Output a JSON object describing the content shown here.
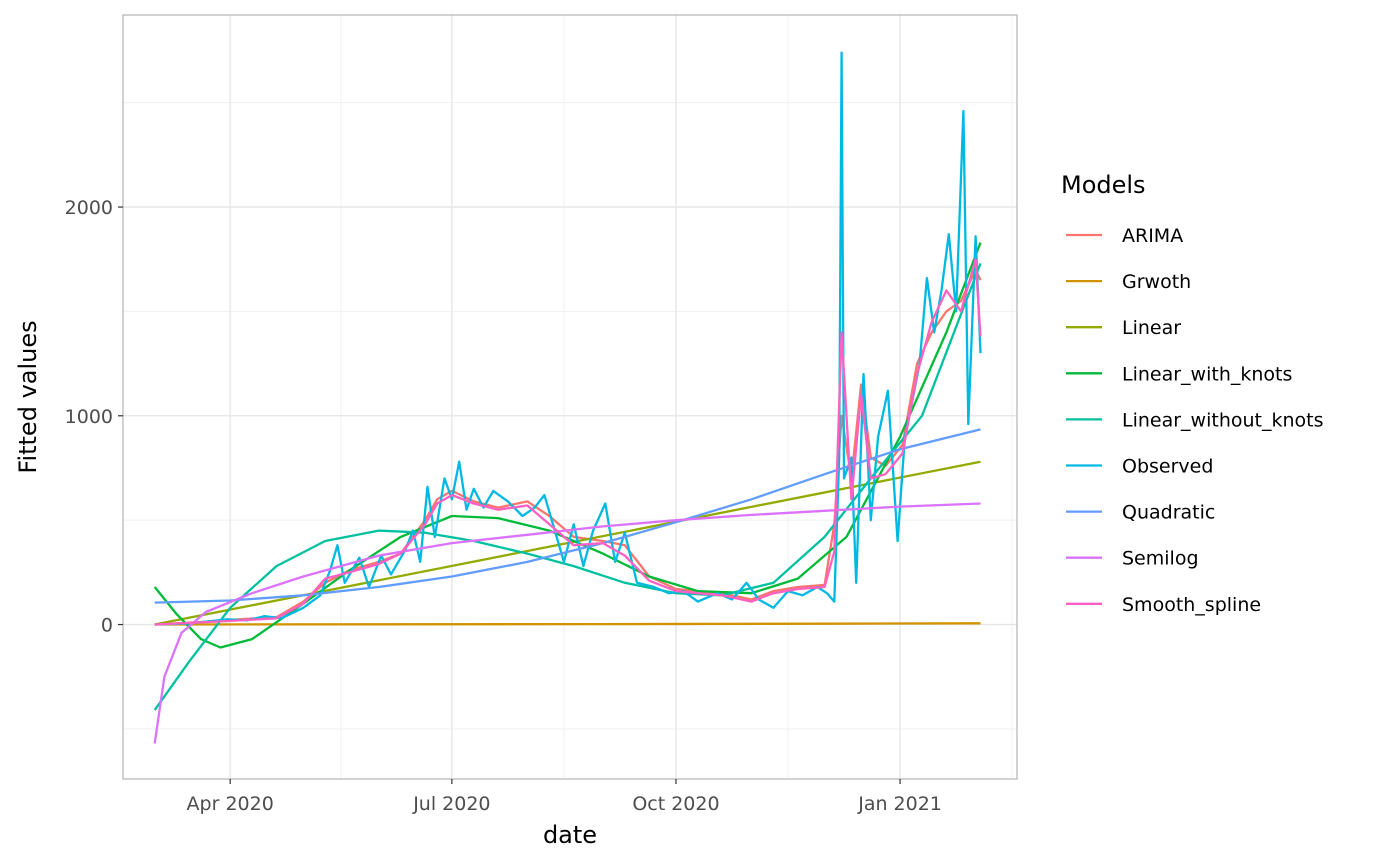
{
  "chart_data": {
    "type": "line",
    "xlabel": "date",
    "ylabel": "Fitted values",
    "xlim": [
      "2020-02-17",
      "2021-02-18"
    ],
    "ylim": [
      -740,
      2920
    ],
    "x_ticks": [
      {
        "date": "2020-04-01",
        "label": "Apr 2020"
      },
      {
        "date": "2020-07-01",
        "label": "Jul 2020"
      },
      {
        "date": "2020-10-01",
        "label": "Oct 2020"
      },
      {
        "date": "2021-01-01",
        "label": "Jan 2021"
      }
    ],
    "y_ticks": [
      0,
      1000,
      2000
    ],
    "grid": true,
    "legend": {
      "title": "Models",
      "position": "right"
    },
    "series": [
      {
        "name": "ARIMA",
        "color": "#F8766D",
        "points": [
          [
            "2020-03-01",
            0
          ],
          [
            "2020-03-20",
            12
          ],
          [
            "2020-04-05",
            25
          ],
          [
            "2020-04-20",
            35
          ],
          [
            "2020-05-01",
            110
          ],
          [
            "2020-05-10",
            200
          ],
          [
            "2020-05-20",
            260
          ],
          [
            "2020-06-01",
            300
          ],
          [
            "2020-06-10",
            340
          ],
          [
            "2020-06-20",
            500
          ],
          [
            "2020-06-25",
            600
          ],
          [
            "2020-07-01",
            640
          ],
          [
            "2020-07-10",
            590
          ],
          [
            "2020-07-20",
            560
          ],
          [
            "2020-08-01",
            590
          ],
          [
            "2020-08-10",
            520
          ],
          [
            "2020-08-20",
            420
          ],
          [
            "2020-09-01",
            400
          ],
          [
            "2020-09-10",
            380
          ],
          [
            "2020-09-20",
            230
          ],
          [
            "2020-10-01",
            170
          ],
          [
            "2020-10-10",
            160
          ],
          [
            "2020-10-20",
            150
          ],
          [
            "2020-11-01",
            120
          ],
          [
            "2020-11-10",
            160
          ],
          [
            "2020-11-20",
            180
          ],
          [
            "2020-12-01",
            190
          ],
          [
            "2020-12-05",
            480
          ],
          [
            "2020-12-08",
            1000
          ],
          [
            "2020-12-12",
            700
          ],
          [
            "2020-12-16",
            1150
          ],
          [
            "2020-12-20",
            800
          ],
          [
            "2020-12-26",
            760
          ],
          [
            "2021-01-02",
            860
          ],
          [
            "2021-01-08",
            1250
          ],
          [
            "2021-01-14",
            1400
          ],
          [
            "2021-01-20",
            1500
          ],
          [
            "2021-01-26",
            1550
          ],
          [
            "2021-02-01",
            1700
          ],
          [
            "2021-02-03",
            1650
          ]
        ]
      },
      {
        "name": "Grwoth",
        "color": "#D39200",
        "points": [
          [
            "2020-03-01",
            0
          ],
          [
            "2020-06-01",
            1
          ],
          [
            "2020-09-01",
            2
          ],
          [
            "2020-12-01",
            4
          ],
          [
            "2021-02-03",
            6
          ]
        ]
      },
      {
        "name": "Linear",
        "color": "#93AA00",
        "points": [
          [
            "2020-03-01",
            0
          ],
          [
            "2021-02-03",
            780
          ]
        ]
      },
      {
        "name": "Linear_with_knots",
        "color": "#00BA38",
        "points": [
          [
            "2020-03-01",
            180
          ],
          [
            "2020-03-10",
            50
          ],
          [
            "2020-03-20",
            -70
          ],
          [
            "2020-03-28",
            -110
          ],
          [
            "2020-04-10",
            -70
          ],
          [
            "2020-05-01",
            100
          ],
          [
            "2020-05-20",
            260
          ],
          [
            "2020-06-10",
            420
          ],
          [
            "2020-07-01",
            520
          ],
          [
            "2020-07-20",
            510
          ],
          [
            "2020-08-10",
            450
          ],
          [
            "2020-09-01",
            340
          ],
          [
            "2020-09-20",
            230
          ],
          [
            "2020-10-10",
            160
          ],
          [
            "2020-11-01",
            150
          ],
          [
            "2020-11-20",
            220
          ],
          [
            "2020-12-10",
            420
          ],
          [
            "2021-01-01",
            900
          ],
          [
            "2021-01-20",
            1400
          ],
          [
            "2021-02-03",
            1830
          ]
        ]
      },
      {
        "name": "Linear_without_knots",
        "color": "#00C19F",
        "points": [
          [
            "2020-03-01",
            -410
          ],
          [
            "2020-03-15",
            -180
          ],
          [
            "2020-04-01",
            80
          ],
          [
            "2020-04-20",
            280
          ],
          [
            "2020-05-10",
            400
          ],
          [
            "2020-06-01",
            450
          ],
          [
            "2020-06-20",
            440
          ],
          [
            "2020-07-10",
            400
          ],
          [
            "2020-08-01",
            340
          ],
          [
            "2020-08-20",
            280
          ],
          [
            "2020-09-10",
            200
          ],
          [
            "2020-10-01",
            150
          ],
          [
            "2020-10-20",
            140
          ],
          [
            "2020-11-10",
            200
          ],
          [
            "2020-12-01",
            420
          ],
          [
            "2020-12-20",
            700
          ],
          [
            "2021-01-10",
            1000
          ],
          [
            "2021-02-03",
            1730
          ]
        ]
      },
      {
        "name": "Observed",
        "color": "#00B9E3",
        "points": [
          [
            "2020-03-01",
            0
          ],
          [
            "2020-03-15",
            5
          ],
          [
            "2020-03-31",
            25
          ],
          [
            "2020-04-08",
            20
          ],
          [
            "2020-04-15",
            40
          ],
          [
            "2020-04-22",
            30
          ],
          [
            "2020-05-01",
            80
          ],
          [
            "2020-05-08",
            140
          ],
          [
            "2020-05-12",
            260
          ],
          [
            "2020-05-15",
            380
          ],
          [
            "2020-05-18",
            200
          ],
          [
            "2020-05-24",
            320
          ],
          [
            "2020-05-28",
            180
          ],
          [
            "2020-06-02",
            330
          ],
          [
            "2020-06-06",
            240
          ],
          [
            "2020-06-12",
            360
          ],
          [
            "2020-06-15",
            450
          ],
          [
            "2020-06-18",
            300
          ],
          [
            "2020-06-21",
            660
          ],
          [
            "2020-06-24",
            420
          ],
          [
            "2020-06-28",
            700
          ],
          [
            "2020-07-01",
            600
          ],
          [
            "2020-07-04",
            780
          ],
          [
            "2020-07-07",
            550
          ],
          [
            "2020-07-10",
            650
          ],
          [
            "2020-07-14",
            560
          ],
          [
            "2020-07-18",
            640
          ],
          [
            "2020-07-24",
            590
          ],
          [
            "2020-07-30",
            520
          ],
          [
            "2020-08-04",
            560
          ],
          [
            "2020-08-08",
            620
          ],
          [
            "2020-08-12",
            460
          ],
          [
            "2020-08-16",
            300
          ],
          [
            "2020-08-20",
            480
          ],
          [
            "2020-08-24",
            280
          ],
          [
            "2020-08-28",
            450
          ],
          [
            "2020-09-02",
            580
          ],
          [
            "2020-09-06",
            300
          ],
          [
            "2020-09-10",
            440
          ],
          [
            "2020-09-15",
            200
          ],
          [
            "2020-09-22",
            180
          ],
          [
            "2020-09-28",
            150
          ],
          [
            "2020-10-04",
            160
          ],
          [
            "2020-10-10",
            110
          ],
          [
            "2020-10-18",
            150
          ],
          [
            "2020-10-24",
            120
          ],
          [
            "2020-10-30",
            200
          ],
          [
            "2020-11-04",
            120
          ],
          [
            "2020-11-10",
            80
          ],
          [
            "2020-11-16",
            160
          ],
          [
            "2020-11-22",
            140
          ],
          [
            "2020-11-28",
            180
          ],
          [
            "2020-12-02",
            150
          ],
          [
            "2020-12-05",
            110
          ],
          [
            "2020-12-07",
            800
          ],
          [
            "2020-12-08",
            2740
          ],
          [
            "2020-12-09",
            700
          ],
          [
            "2020-12-12",
            800
          ],
          [
            "2020-12-14",
            200
          ],
          [
            "2020-12-17",
            1200
          ],
          [
            "2020-12-20",
            500
          ],
          [
            "2020-12-23",
            900
          ],
          [
            "2020-12-27",
            1120
          ],
          [
            "2020-12-31",
            400
          ],
          [
            "2021-01-03",
            900
          ],
          [
            "2021-01-06",
            1070
          ],
          [
            "2021-01-09",
            1250
          ],
          [
            "2021-01-12",
            1660
          ],
          [
            "2021-01-15",
            1400
          ],
          [
            "2021-01-18",
            1600
          ],
          [
            "2021-01-21",
            1870
          ],
          [
            "2021-01-24",
            1500
          ],
          [
            "2021-01-27",
            2460
          ],
          [
            "2021-01-29",
            960
          ],
          [
            "2021-02-01",
            1860
          ],
          [
            "2021-02-03",
            1300
          ]
        ]
      },
      {
        "name": "Quadratic",
        "color": "#619CFF",
        "points": [
          [
            "2020-03-01",
            105
          ],
          [
            "2020-04-01",
            115
          ],
          [
            "2020-05-01",
            140
          ],
          [
            "2020-06-01",
            180
          ],
          [
            "2020-07-01",
            230
          ],
          [
            "2020-08-01",
            300
          ],
          [
            "2020-09-01",
            390
          ],
          [
            "2020-10-01",
            490
          ],
          [
            "2020-11-01",
            600
          ],
          [
            "2020-12-01",
            720
          ],
          [
            "2021-01-01",
            840
          ],
          [
            "2021-02-03",
            935
          ]
        ]
      },
      {
        "name": "Semilog",
        "color": "#DB72FB",
        "points": [
          [
            "2020-03-01",
            -570
          ],
          [
            "2020-03-05",
            -250
          ],
          [
            "2020-03-12",
            -40
          ],
          [
            "2020-03-22",
            60
          ],
          [
            "2020-04-10",
            150
          ],
          [
            "2020-05-01",
            230
          ],
          [
            "2020-06-01",
            330
          ],
          [
            "2020-07-01",
            390
          ],
          [
            "2020-08-01",
            430
          ],
          [
            "2020-09-01",
            470
          ],
          [
            "2020-10-01",
            500
          ],
          [
            "2020-11-01",
            525
          ],
          [
            "2020-12-01",
            545
          ],
          [
            "2021-01-01",
            565
          ],
          [
            "2021-02-03",
            580
          ]
        ]
      },
      {
        "name": "Smooth_spline",
        "color": "#FF61C3",
        "points": [
          [
            "2020-03-01",
            0
          ],
          [
            "2020-03-20",
            10
          ],
          [
            "2020-04-05",
            20
          ],
          [
            "2020-04-20",
            30
          ],
          [
            "2020-05-01",
            100
          ],
          [
            "2020-05-10",
            220
          ],
          [
            "2020-05-20",
            250
          ],
          [
            "2020-06-01",
            290
          ],
          [
            "2020-06-10",
            340
          ],
          [
            "2020-06-20",
            480
          ],
          [
            "2020-06-25",
            580
          ],
          [
            "2020-07-01",
            620
          ],
          [
            "2020-07-10",
            580
          ],
          [
            "2020-07-20",
            550
          ],
          [
            "2020-08-01",
            570
          ],
          [
            "2020-08-10",
            480
          ],
          [
            "2020-08-20",
            380
          ],
          [
            "2020-09-01",
            390
          ],
          [
            "2020-09-10",
            330
          ],
          [
            "2020-09-20",
            210
          ],
          [
            "2020-10-01",
            160
          ],
          [
            "2020-10-10",
            150
          ],
          [
            "2020-10-20",
            140
          ],
          [
            "2020-11-01",
            110
          ],
          [
            "2020-11-10",
            150
          ],
          [
            "2020-11-20",
            170
          ],
          [
            "2020-12-01",
            180
          ],
          [
            "2020-12-05",
            350
          ],
          [
            "2020-12-08",
            1400
          ],
          [
            "2020-12-12",
            600
          ],
          [
            "2020-12-16",
            1100
          ],
          [
            "2020-12-20",
            700
          ],
          [
            "2020-12-26",
            720
          ],
          [
            "2021-01-02",
            820
          ],
          [
            "2021-01-08",
            1200
          ],
          [
            "2021-01-14",
            1450
          ],
          [
            "2021-01-20",
            1600
          ],
          [
            "2021-01-26",
            1500
          ],
          [
            "2021-02-01",
            1750
          ],
          [
            "2021-02-03",
            1380
          ]
        ]
      }
    ]
  }
}
